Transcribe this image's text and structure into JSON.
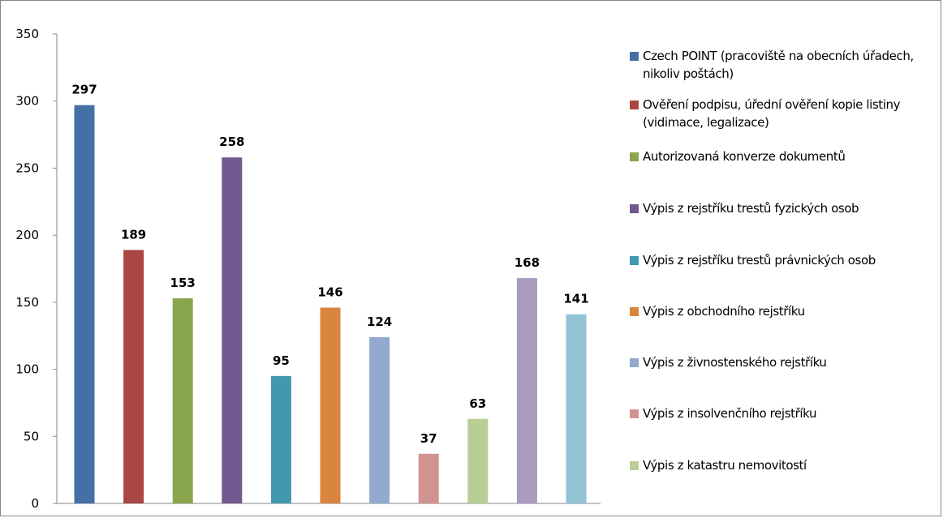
{
  "chart_data": {
    "type": "bar",
    "title": "",
    "xlabel": "",
    "ylabel": "",
    "ylim": [
      0,
      350
    ],
    "yticks": [
      0,
      50,
      100,
      150,
      200,
      250,
      300,
      350
    ],
    "grid": false,
    "legend_position": "right",
    "series": [
      {
        "name": "Czech POINT (pracoviště na obecních úřadech, nikoliv poštách)",
        "value": 297,
        "color": "#4470A5"
      },
      {
        "name": "Ověření podpisu, úřední ověření kopie listiny (vidimace, legalizace)",
        "value": 189,
        "color": "#AA4744"
      },
      {
        "name": "Autorizovaná konverze dokumentů",
        "value": 153,
        "color": "#89A54E"
      },
      {
        "name": "Výpis z rejstříku trestů fyzických osob",
        "value": 258,
        "color": "#71588F"
      },
      {
        "name": "Výpis z rejstříku trestů právnických osob",
        "value": 95,
        "color": "#4198AF"
      },
      {
        "name": "Výpis z obchodního rejstříku",
        "value": 146,
        "color": "#DB843D"
      },
      {
        "name": "Výpis z živnostenského rejstříku",
        "value": 124,
        "color": "#93A9CF"
      },
      {
        "name": "Výpis z insolvenčního rejstříku",
        "value": 37,
        "color": "#D19392"
      },
      {
        "name": "Výpis z katastru nemovitostí",
        "value": 63,
        "color": "#B9CD96"
      },
      {
        "name": "",
        "value": 168,
        "color": "#A99BBD"
      },
      {
        "name": "",
        "value": 141,
        "color": "#92C3D4"
      }
    ]
  }
}
